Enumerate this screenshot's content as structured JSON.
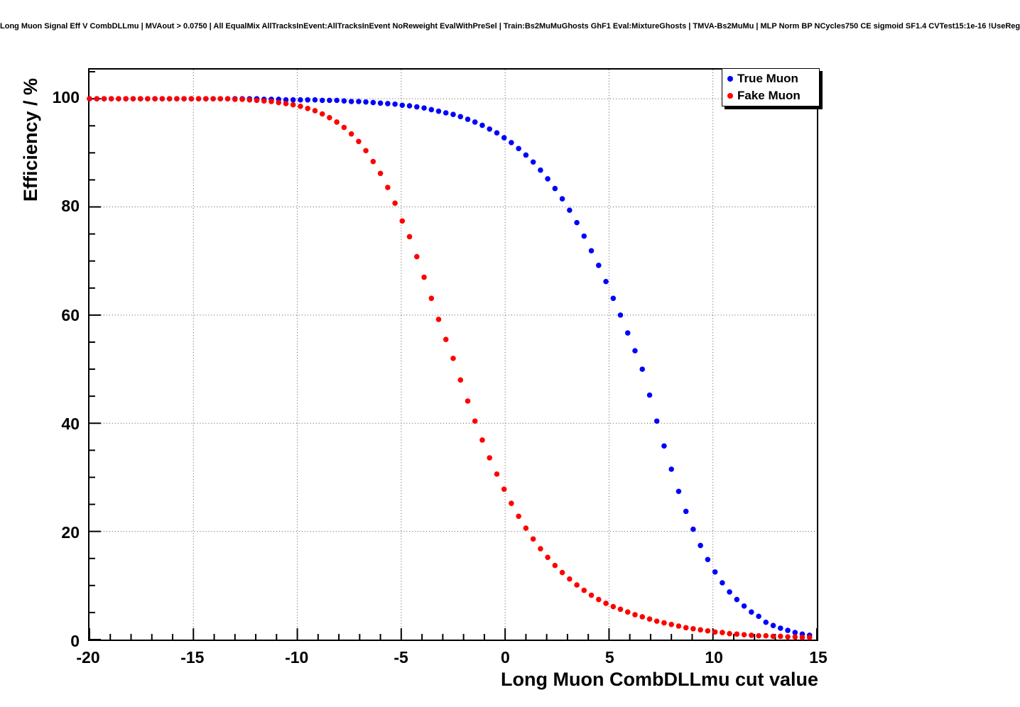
{
  "page": {
    "title": "Long Muon Signal Eff V CombDLLmu | MVAout > 0.0750 | All EqualMix AllTracksInEvent:AllTracksInEvent NoReweight EvalWithPreSel | Train:Bs2MuMuGhosts GhF1 Eval:MixtureGhosts | TMVA-Bs2MuMu | MLP Norm BP NCycles750 CE sigmoid SF1.4 CVTest15:1e-16 !UseReg"
  },
  "axes": {
    "x": {
      "label": "Long Muon CombDLLmu cut value",
      "min": -20,
      "max": 15,
      "ticks": [
        -20,
        -15,
        -10,
        -5,
        0,
        5,
        10,
        15
      ]
    },
    "y": {
      "label": "Efficiency / %",
      "min": 0,
      "max": 105.4,
      "ticks": [
        0,
        20,
        40,
        60,
        80,
        100
      ]
    }
  },
  "legend": {
    "entries": [
      {
        "label": "True Muon",
        "color": "#0000ff"
      },
      {
        "label": "Fake Muon",
        "color": "#ff0000"
      }
    ]
  },
  "chart_data": {
    "type": "scatter",
    "title": "Long Muon Signal Eff V CombDLLmu",
    "xlabel": "Long Muon CombDLLmu cut value",
    "ylabel": "Efficiency / %",
    "xlim": [
      -20,
      15
    ],
    "ylim": [
      0,
      105.4
    ],
    "grid": true,
    "legend_position": "top-right",
    "marker": "circle",
    "x": [
      -20,
      -19.65,
      -19.3,
      -18.95,
      -18.6,
      -18.25,
      -17.9,
      -17.55,
      -17.2,
      -16.85,
      -16.5,
      -16.15,
      -15.8,
      -15.45,
      -15.1,
      -14.75,
      -14.4,
      -14.05,
      -13.7,
      -13.35,
      -13,
      -12.65,
      -12.3,
      -11.95,
      -11.6,
      -11.25,
      -10.9,
      -10.55,
      -10.2,
      -9.85,
      -9.5,
      -9.15,
      -8.8,
      -8.45,
      -8.1,
      -7.75,
      -7.4,
      -7.05,
      -6.7,
      -6.35,
      -6,
      -5.65,
      -5.3,
      -4.95,
      -4.6,
      -4.25,
      -3.9,
      -3.55,
      -3.2,
      -2.85,
      -2.5,
      -2.15,
      -1.8,
      -1.45,
      -1.1,
      -0.75,
      -0.4,
      -0.05,
      0.3,
      0.65,
      1,
      1.35,
      1.7,
      2.05,
      2.4,
      2.75,
      3.1,
      3.45,
      3.8,
      4.15,
      4.5,
      4.85,
      5.2,
      5.55,
      5.9,
      6.25,
      6.6,
      6.95,
      7.3,
      7.65,
      8,
      8.35,
      8.7,
      9.05,
      9.4,
      9.75,
      10.1,
      10.45,
      10.8,
      11.15,
      11.5,
      11.85,
      12.2,
      12.55,
      12.9,
      13.25,
      13.6,
      13.95,
      14.3,
      14.65
    ],
    "series": [
      {
        "name": "True Muon",
        "color": "#0000ff",
        "values": [
          100,
          100,
          100,
          100,
          100,
          100,
          100,
          100,
          100,
          100,
          100,
          100,
          100,
          100,
          100,
          100,
          100,
          100,
          100,
          100,
          100,
          100,
          100,
          100,
          99.9,
          99.9,
          99.9,
          99.8,
          99.8,
          99.8,
          99.8,
          99.8,
          99.7,
          99.7,
          99.7,
          99.6,
          99.5,
          99.5,
          99.4,
          99.3,
          99.2,
          99.1,
          99,
          98.8,
          98.7,
          98.5,
          98.3,
          98,
          97.7,
          97.4,
          97.1,
          96.7,
          96.2,
          95.7,
          95.1,
          94.4,
          93.7,
          92.8,
          91.9,
          90.8,
          89.6,
          88.3,
          86.8,
          85.2,
          83.4,
          81.5,
          79.4,
          77.1,
          74.6,
          71.9,
          69.2,
          66.2,
          63.1,
          60,
          56.7,
          53.4,
          50,
          45.2,
          40.4,
          35.8,
          31.5,
          27.4,
          23.7,
          20.4,
          17.4,
          14.8,
          12.5,
          10.5,
          8.8,
          7.4,
          6.2,
          5.1,
          4.3,
          3.2,
          2.6,
          2.1,
          1.7,
          1.3,
          1,
          0.8
        ]
      },
      {
        "name": "Fake Muon",
        "color": "#ff0000",
        "values": [
          100,
          100,
          100,
          100,
          100,
          100,
          100,
          100,
          100,
          100,
          100,
          100,
          100,
          100,
          100,
          100,
          100,
          100,
          100,
          100,
          99.9,
          99.9,
          99.8,
          99.7,
          99.6,
          99.5,
          99.3,
          99.1,
          98.9,
          98.6,
          98.2,
          97.8,
          97.2,
          96.5,
          95.7,
          94.7,
          93.5,
          92.1,
          90.4,
          88.4,
          86.2,
          83.6,
          80.7,
          77.4,
          74.5,
          70.8,
          67,
          63.1,
          59.2,
          55.5,
          52,
          48,
          44.1,
          40.4,
          36.9,
          33.6,
          30.6,
          27.8,
          25.2,
          22.8,
          20.6,
          18.6,
          16.8,
          15.2,
          13.7,
          12.4,
          11.2,
          10.1,
          9.1,
          8.2,
          7.4,
          6.7,
          6.1,
          5.6,
          5.1,
          4.6,
          4.2,
          3.8,
          3.4,
          3.1,
          2.8,
          2.5,
          2.2,
          2,
          1.8,
          1.6,
          1.4,
          1.3,
          1.1,
          1,
          0.9,
          0.8,
          0.7,
          0.7,
          0.6,
          0.6,
          0.5,
          0.5,
          0.4,
          0.4
        ]
      }
    ]
  }
}
